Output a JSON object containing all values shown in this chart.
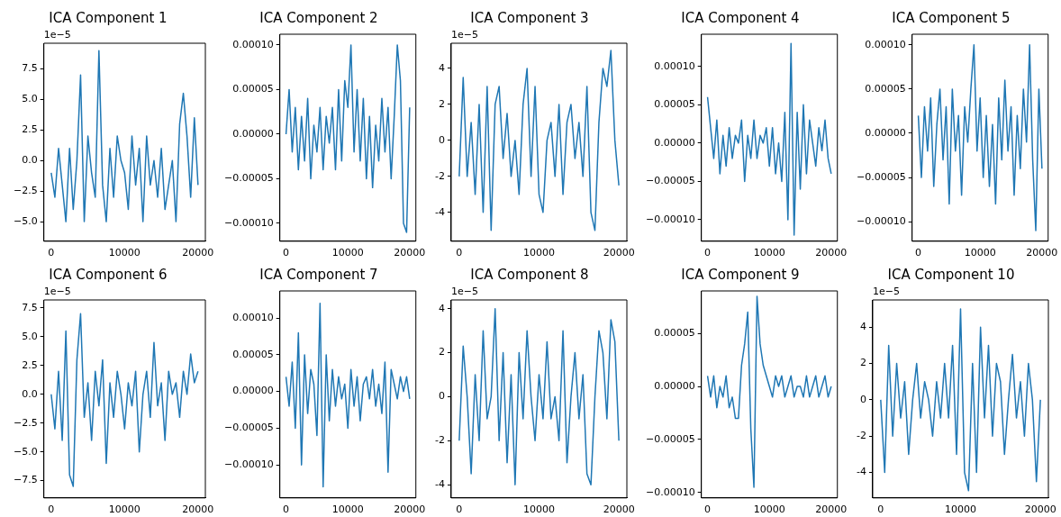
{
  "chart_data": [
    {
      "type": "line",
      "title": "ICA Component 1",
      "annotations": [
        "1e−5"
      ],
      "color": "#1f77b4",
      "xlim": [
        -1000,
        21000
      ],
      "xticks": [
        0,
        10000,
        20000
      ],
      "ylim": [
        -6.6,
        9.6
      ],
      "yticks": [
        {
          "value": -5,
          "label": "−5.0"
        },
        {
          "value": -2.5,
          "label": "−2.5"
        },
        {
          "value": 0,
          "label": "0.0"
        },
        {
          "value": 2.5,
          "label": "2.5"
        },
        {
          "value": 5,
          "label": "5.0"
        },
        {
          "value": 7.5,
          "label": "7.5"
        }
      ],
      "grid": false,
      "x": [
        0,
        500,
        1000,
        1500,
        2000,
        2500,
        3000,
        3500,
        4000,
        4500,
        5000,
        5500,
        6000,
        6500,
        7000,
        7500,
        8000,
        8500,
        9000,
        9500,
        10000,
        10500,
        11000,
        11500,
        12000,
        12500,
        13000,
        13500,
        14000,
        14500,
        15000,
        15500,
        16000,
        16500,
        17000,
        17500,
        18000,
        18500,
        19000,
        19500,
        20000
      ],
      "values": [
        -1,
        -3,
        1,
        -2,
        -5,
        1,
        -4,
        0,
        7,
        -5,
        2,
        -1,
        -3,
        9,
        -2,
        -5,
        1,
        -3,
        2,
        0,
        -1,
        -4,
        2,
        -2,
        1,
        -5,
        2,
        -2,
        0,
        -3,
        1,
        -4,
        -2,
        0,
        -5,
        3,
        5.5,
        2,
        -3,
        3.5,
        -2
      ]
    },
    {
      "type": "line",
      "title": "ICA Component 2",
      "color": "#1f77b4",
      "xlim": [
        -1000,
        21000
      ],
      "xticks": [
        0,
        10000,
        20000
      ],
      "ylim": [
        -0.00012,
        0.000112
      ],
      "yticks": [
        {
          "value": -0.0001,
          "label": "−0.00010"
        },
        {
          "value": -5e-05,
          "label": "−0.00005"
        },
        {
          "value": 0,
          "label": "0.00000"
        },
        {
          "value": 5e-05,
          "label": "0.00005"
        },
        {
          "value": 0.0001,
          "label": "0.00010"
        }
      ],
      "grid": false,
      "x": [
        0,
        500,
        1000,
        1500,
        2000,
        2500,
        3000,
        3500,
        4000,
        4500,
        5000,
        5500,
        6000,
        6500,
        7000,
        7500,
        8000,
        8500,
        9000,
        9500,
        10000,
        10500,
        11000,
        11500,
        12000,
        12500,
        13000,
        13500,
        14000,
        14500,
        15000,
        15500,
        16000,
        16500,
        17000,
        17500,
        18000,
        18500,
        19000,
        19500,
        20000
      ],
      "values": [
        0,
        5e-05,
        -2e-05,
        3e-05,
        -4e-05,
        2e-05,
        -3e-05,
        4e-05,
        -5e-05,
        1e-05,
        -2e-05,
        3e-05,
        -4e-05,
        2e-05,
        -1e-05,
        3e-05,
        -4e-05,
        5e-05,
        -3e-05,
        6e-05,
        3e-05,
        0.0001,
        -2e-05,
        5e-05,
        -3e-05,
        4e-05,
        -5e-05,
        2e-05,
        -6e-05,
        1e-05,
        -3e-05,
        4e-05,
        -2e-05,
        3e-05,
        -5e-05,
        2e-05,
        0.0001,
        6e-05,
        -0.0001,
        -0.00011,
        3e-05
      ]
    },
    {
      "type": "line",
      "title": "ICA Component 3",
      "annotations": [
        "1e−5"
      ],
      "color": "#1f77b4",
      "xlim": [
        -1000,
        21000
      ],
      "xticks": [
        0,
        10000,
        20000
      ],
      "ylim": [
        -5.6,
        5.4
      ],
      "yticks": [
        -4,
        -2,
        0,
        2,
        4
      ],
      "grid": false,
      "x": [
        0,
        500,
        1000,
        1500,
        2000,
        2500,
        3000,
        3500,
        4000,
        4500,
        5000,
        5500,
        6000,
        6500,
        7000,
        7500,
        8000,
        8500,
        9000,
        9500,
        10000,
        10500,
        11000,
        11500,
        12000,
        12500,
        13000,
        13500,
        14000,
        14500,
        15000,
        15500,
        16000,
        16500,
        17000,
        17500,
        18000,
        18500,
        19000,
        19500,
        20000
      ],
      "values": [
        -2,
        3.5,
        -2,
        1,
        -3,
        2,
        -4,
        3,
        -5,
        2,
        3,
        -1,
        1.5,
        -2,
        0,
        -3,
        2,
        4,
        -2,
        3,
        -3,
        -4,
        0,
        1,
        -2,
        2,
        -3,
        1,
        2,
        -1,
        1,
        -2,
        3,
        -4,
        -5,
        1,
        4,
        3,
        5,
        0,
        -2.5
      ]
    },
    {
      "type": "line",
      "title": "ICA Component 4",
      "color": "#1f77b4",
      "xlim": [
        -1000,
        21000
      ],
      "xticks": [
        0,
        10000,
        20000
      ],
      "ylim": [
        -0.000128,
        0.000142
      ],
      "yticks": [
        {
          "value": -0.0001,
          "label": "−0.00010"
        },
        {
          "value": -5e-05,
          "label": "−0.00005"
        },
        {
          "value": 0,
          "label": "0.00000"
        },
        {
          "value": 5e-05,
          "label": "0.00005"
        },
        {
          "value": 0.0001,
          "label": "0.00010"
        }
      ],
      "grid": false,
      "x": [
        0,
        500,
        1000,
        1500,
        2000,
        2500,
        3000,
        3500,
        4000,
        4500,
        5000,
        5500,
        6000,
        6500,
        7000,
        7500,
        8000,
        8500,
        9000,
        9500,
        10000,
        10500,
        11000,
        11500,
        12000,
        12500,
        13000,
        13500,
        14000,
        14500,
        15000,
        15500,
        16000,
        16500,
        17000,
        17500,
        18000,
        18500,
        19000,
        19500,
        20000
      ],
      "values": [
        6e-05,
        2e-05,
        -2e-05,
        3e-05,
        -4e-05,
        1e-05,
        -3e-05,
        2e-05,
        -2e-05,
        1e-05,
        0,
        3e-05,
        -5e-05,
        1e-05,
        -2e-05,
        3e-05,
        -2e-05,
        1e-05,
        0,
        2e-05,
        -3e-05,
        2e-05,
        -4e-05,
        0,
        -5e-05,
        4e-05,
        -0.0001,
        0.00013,
        -0.00012,
        4e-05,
        -6e-05,
        5e-05,
        -4e-05,
        3e-05,
        0,
        -3e-05,
        2e-05,
        -1e-05,
        3e-05,
        -2e-05,
        -4e-05
      ]
    },
    {
      "type": "line",
      "title": "ICA Component 5",
      "color": "#1f77b4",
      "xlim": [
        -1000,
        21000
      ],
      "xticks": [
        0,
        10000,
        20000
      ],
      "ylim": [
        -0.000122,
        0.000112
      ],
      "yticks": [
        {
          "value": -0.0001,
          "label": "−0.00010"
        },
        {
          "value": -5e-05,
          "label": "−0.00005"
        },
        {
          "value": 0,
          "label": "0.00000"
        },
        {
          "value": 5e-05,
          "label": "0.00005"
        },
        {
          "value": 0.0001,
          "label": "0.00010"
        }
      ],
      "grid": false,
      "x": [
        0,
        500,
        1000,
        1500,
        2000,
        2500,
        3000,
        3500,
        4000,
        4500,
        5000,
        5500,
        6000,
        6500,
        7000,
        7500,
        8000,
        8500,
        9000,
        9500,
        10000,
        10500,
        11000,
        11500,
        12000,
        12500,
        13000,
        13500,
        14000,
        14500,
        15000,
        15500,
        16000,
        16500,
        17000,
        17500,
        18000,
        18500,
        19000,
        19500,
        20000
      ],
      "values": [
        2e-05,
        -5e-05,
        3e-05,
        -2e-05,
        4e-05,
        -6e-05,
        1e-05,
        5e-05,
        -3e-05,
        3e-05,
        -8e-05,
        5e-05,
        -2e-05,
        2e-05,
        -7e-05,
        3e-05,
        -1e-05,
        5e-05,
        0.0001,
        -2e-05,
        4e-05,
        -5e-05,
        2e-05,
        -6e-05,
        1e-05,
        -8e-05,
        4e-05,
        -3e-05,
        6e-05,
        -2e-05,
        3e-05,
        -7e-05,
        2e-05,
        -4e-05,
        5e-05,
        -1e-05,
        0.0001,
        -3e-05,
        -0.00011,
        5e-05,
        -4e-05
      ]
    },
    {
      "type": "line",
      "title": "ICA Component 6",
      "annotations": [
        "1e−5"
      ],
      "color": "#1f77b4",
      "xlim": [
        -1000,
        21000
      ],
      "xticks": [
        0,
        10000,
        20000
      ],
      "ylim": [
        -9,
        8.2
      ],
      "yticks": [
        {
          "value": -7.5,
          "label": "−7.5"
        },
        {
          "value": -5,
          "label": "−5.0"
        },
        {
          "value": -2.5,
          "label": "−2.5"
        },
        {
          "value": 0,
          "label": "0.0"
        },
        {
          "value": 2.5,
          "label": "2.5"
        },
        {
          "value": 5,
          "label": "5.0"
        },
        {
          "value": 7.5,
          "label": "7.5"
        }
      ],
      "grid": false,
      "x": [
        0,
        500,
        1000,
        1500,
        2000,
        2500,
        3000,
        3500,
        4000,
        4500,
        5000,
        5500,
        6000,
        6500,
        7000,
        7500,
        8000,
        8500,
        9000,
        9500,
        10000,
        10500,
        11000,
        11500,
        12000,
        12500,
        13000,
        13500,
        14000,
        14500,
        15000,
        15500,
        16000,
        16500,
        17000,
        17500,
        18000,
        18500,
        19000,
        19500,
        20000
      ],
      "values": [
        0,
        -3,
        2,
        -4,
        5.5,
        -7,
        -8,
        3,
        7,
        -2,
        1,
        -4,
        2,
        -1,
        3,
        -6,
        1,
        -2,
        2,
        0,
        -3,
        1,
        -1,
        2,
        -5,
        0,
        2,
        -2,
        4.5,
        -1,
        1,
        -4,
        2,
        0,
        1,
        -2,
        2,
        0,
        3.5,
        1,
        2
      ]
    },
    {
      "type": "line",
      "title": "ICA Component 7",
      "color": "#1f77b4",
      "xlim": [
        -1000,
        21000
      ],
      "xticks": [
        0,
        10000,
        20000
      ],
      "ylim": [
        -0.000145,
        0.000137
      ],
      "yticks": [
        {
          "value": -0.0001,
          "label": "−0.00010"
        },
        {
          "value": -5e-05,
          "label": "−0.00005"
        },
        {
          "value": 0,
          "label": "0.00000"
        },
        {
          "value": 5e-05,
          "label": "0.00005"
        },
        {
          "value": 0.0001,
          "label": "0.00010"
        }
      ],
      "grid": false,
      "x": [
        0,
        500,
        1000,
        1500,
        2000,
        2500,
        3000,
        3500,
        4000,
        4500,
        5000,
        5500,
        6000,
        6500,
        7000,
        7500,
        8000,
        8500,
        9000,
        9500,
        10000,
        10500,
        11000,
        11500,
        12000,
        12500,
        13000,
        13500,
        14000,
        14500,
        15000,
        15500,
        16000,
        16500,
        17000,
        17500,
        18000,
        18500,
        19000,
        19500,
        20000
      ],
      "values": [
        2e-05,
        -2e-05,
        4e-05,
        -5e-05,
        8e-05,
        -0.0001,
        5e-05,
        -3e-05,
        3e-05,
        1e-05,
        -6e-05,
        0.00012,
        -0.00013,
        5e-05,
        -4e-05,
        3e-05,
        -2e-05,
        2e-05,
        -1e-05,
        1e-05,
        -5e-05,
        3e-05,
        -2e-05,
        2e-05,
        -4e-05,
        1e-05,
        2e-05,
        -1e-05,
        3e-05,
        -2e-05,
        1e-05,
        -3e-05,
        4e-05,
        -0.00011,
        3e-05,
        1e-05,
        -1e-05,
        2e-05,
        0,
        2e-05,
        -1e-05
      ]
    },
    {
      "type": "line",
      "title": "ICA Component 8",
      "annotations": [
        "1e−5"
      ],
      "color": "#1f77b4",
      "xlim": [
        -1000,
        21000
      ],
      "xticks": [
        0,
        10000,
        20000
      ],
      "ylim": [
        -4.6,
        4.4
      ],
      "yticks": [
        -4,
        -2,
        0,
        2,
        4
      ],
      "grid": false,
      "x": [
        0,
        500,
        1000,
        1500,
        2000,
        2500,
        3000,
        3500,
        4000,
        4500,
        5000,
        5500,
        6000,
        6500,
        7000,
        7500,
        8000,
        8500,
        9000,
        9500,
        10000,
        10500,
        11000,
        11500,
        12000,
        12500,
        13000,
        13500,
        14000,
        14500,
        15000,
        15500,
        16000,
        16500,
        17000,
        17500,
        18000,
        18500,
        19000,
        19500,
        20000
      ],
      "values": [
        -2,
        2.3,
        0,
        -3.5,
        1,
        -2,
        3,
        -1,
        0,
        4,
        -2,
        2,
        -3,
        1,
        -4,
        2,
        -1,
        3,
        0,
        -2,
        1,
        -1,
        2.5,
        -1,
        0,
        -2,
        3,
        -3,
        0,
        2,
        -1,
        1,
        -3.5,
        -4,
        0,
        3,
        2,
        -1,
        3.5,
        2.5,
        -2
      ]
    },
    {
      "type": "line",
      "title": "ICA Component 9",
      "color": "#1f77b4",
      "xlim": [
        -1000,
        21000
      ],
      "xticks": [
        0,
        10000,
        20000
      ],
      "ylim": [
        -0.000105,
        9e-05
      ],
      "yticks": [
        {
          "value": -0.0001,
          "label": "−0.00010"
        },
        {
          "value": -5e-05,
          "label": "−0.00005"
        },
        {
          "value": 0,
          "label": "0.00000"
        },
        {
          "value": 5e-05,
          "label": "0.00005"
        }
      ],
      "grid": false,
      "x": [
        0,
        500,
        1000,
        1500,
        2000,
        2500,
        3000,
        3500,
        4000,
        4500,
        5000,
        5500,
        6000,
        6500,
        7000,
        7500,
        8000,
        8500,
        9000,
        9500,
        10000,
        10500,
        11000,
        11500,
        12000,
        12500,
        13000,
        13500,
        14000,
        14500,
        15000,
        15500,
        16000,
        16500,
        17000,
        17500,
        18000,
        18500,
        19000,
        19500,
        20000
      ],
      "values": [
        1e-05,
        -1e-05,
        1e-05,
        -2e-05,
        0,
        -1e-05,
        1e-05,
        -2e-05,
        -1e-05,
        -3e-05,
        -3e-05,
        2e-05,
        4e-05,
        7e-05,
        -4e-05,
        -9.5e-05,
        8.5e-05,
        4e-05,
        2e-05,
        1e-05,
        0,
        -1e-05,
        1e-05,
        0,
        1e-05,
        -1e-05,
        0,
        1e-05,
        -1e-05,
        0,
        0,
        -1e-05,
        1e-05,
        -1e-05,
        0,
        1e-05,
        -1e-05,
        0,
        1e-05,
        -1e-05,
        0
      ]
    },
    {
      "type": "line",
      "title": "ICA Component 10",
      "annotations": [
        "1e−5"
      ],
      "color": "#1f77b4",
      "xlim": [
        -1000,
        21000
      ],
      "xticks": [
        0,
        10000,
        20000
      ],
      "ylim": [
        -5.4,
        5.5
      ],
      "yticks": [
        -4,
        -2,
        0,
        2,
        4
      ],
      "grid": false,
      "x": [
        0,
        500,
        1000,
        1500,
        2000,
        2500,
        3000,
        3500,
        4000,
        4500,
        5000,
        5500,
        6000,
        6500,
        7000,
        7500,
        8000,
        8500,
        9000,
        9500,
        10000,
        10500,
        11000,
        11500,
        12000,
        12500,
        13000,
        13500,
        14000,
        14500,
        15000,
        15500,
        16000,
        16500,
        17000,
        17500,
        18000,
        18500,
        19000,
        19500,
        20000
      ],
      "values": [
        0,
        -4,
        3,
        -2,
        2,
        -1,
        1,
        -3,
        0,
        2,
        -1,
        1,
        0,
        -2,
        1,
        -1,
        2,
        -1,
        3,
        -3,
        5,
        -4,
        -5,
        2,
        -4,
        4,
        -1,
        3,
        -2,
        2,
        1,
        -3,
        0,
        2.5,
        -1,
        1,
        -2,
        2,
        0,
        -4.5,
        0
      ]
    }
  ]
}
